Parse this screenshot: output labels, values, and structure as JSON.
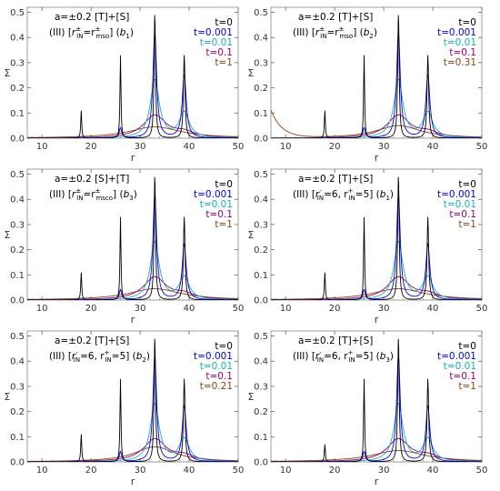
{
  "figure": {
    "axes": {
      "xlabel": "r",
      "ylabel": "Σ",
      "xlim": [
        7,
        50
      ],
      "ylim": [
        0,
        0.52
      ],
      "xticks": [
        "10",
        "20",
        "30",
        "40",
        "50"
      ],
      "yticks": [
        "0.0",
        "0.1",
        "0.2",
        "0.3",
        "0.4",
        "0.5"
      ],
      "grid": false
    },
    "colors": {
      "t=0": "#000000",
      "t=0.001": "#0000ee",
      "t=0.01": "#1ab0b0",
      "t=0.1": "#990077",
      "late": "#8b4513"
    }
  },
  "chart_data": [
    {
      "type": "line",
      "title_line1": "a=±0.2 [T]+[S]",
      "title_line2": "(III) [r⁺̲ₓ̲] (b1)",
      "title_parts": {
        "prefix": "(III) [",
        "main": "r",
        "sup": "±",
        "sub": "IN",
        "mid": "=r",
        "sup2": "±",
        "sub2": "mso",
        "suffix": "] (",
        "b": "b",
        "bsub": "1",
        "end": ")"
      },
      "legend": [
        "t=0",
        "t=0.001",
        "t=0.01",
        "t=0.1",
        "t=1"
      ],
      "legend_position": "top-right",
      "series": [
        {
          "name": "t=0",
          "peaks": [
            [
              18,
              0.11,
              0.12
            ],
            [
              26,
              0.33,
              0.12
            ],
            [
              33,
              0.5,
              0.18
            ],
            [
              39,
              0.33,
              0.2
            ]
          ]
        },
        {
          "name": "t=0.001",
          "peaks": [
            [
              26,
              0.04,
              0.3
            ],
            [
              33,
              0.42,
              0.45
            ],
            [
              39,
              0.25,
              0.5
            ]
          ]
        },
        {
          "name": "t=0.01",
          "peaks": [
            [
              33,
              0.23,
              1.1
            ],
            [
              39,
              0.1,
              1.2
            ]
          ]
        },
        {
          "name": "t=0.1",
          "peaks": [
            [
              33,
              0.09,
              2.8
            ],
            [
              39,
              0.02,
              2.5
            ]
          ]
        },
        {
          "name": "t=1",
          "peaks": [
            [
              33,
              0.045,
              6.5
            ]
          ]
        }
      ]
    },
    {
      "type": "line",
      "title_line1": "a=±0.2 [T]+[S]",
      "title_parts": {
        "prefix": "(III) [",
        "main": "r",
        "sup": "±",
        "sub": "IN",
        "mid": "=r",
        "sup2": "±",
        "sub2": "mso",
        "suffix": "] (",
        "b": "b",
        "bsub": "2",
        "end": ")"
      },
      "legend": [
        "t=0",
        "t=0.001",
        "t=0.01",
        "t=0.1",
        "t=0.31"
      ],
      "legend_position": "top-right",
      "series": [
        {
          "name": "t=0",
          "peaks": [
            [
              18,
              0.11,
              0.12
            ],
            [
              26,
              0.33,
              0.12
            ],
            [
              33,
              0.5,
              0.18
            ],
            [
              39,
              0.33,
              0.2
            ]
          ]
        },
        {
          "name": "t=0.001",
          "peaks": [
            [
              26,
              0.04,
              0.3
            ],
            [
              33,
              0.42,
              0.45
            ],
            [
              39,
              0.25,
              0.5
            ]
          ]
        },
        {
          "name": "t=0.01",
          "peaks": [
            [
              33,
              0.23,
              1.1
            ],
            [
              39,
              0.1,
              1.2
            ]
          ]
        },
        {
          "name": "t=0.1",
          "peaks": [
            [
              33,
              0.09,
              2.8
            ],
            [
              39,
              0.02,
              2.5
            ]
          ]
        },
        {
          "name": "t=0.31",
          "peaks": [
            [
              33,
              0.05,
              5.5
            ]
          ],
          "edge_rise": 0.11
        }
      ]
    },
    {
      "type": "line",
      "title_line1": "a=±0.2 [S]+[T]",
      "title_parts": {
        "prefix": "(III) [",
        "main": "r",
        "sup": "±",
        "sub": "IN",
        "mid": "=r",
        "sup2": "±",
        "sub2": "msco",
        "suffix": "] (",
        "b": "b",
        "bsub": "3",
        "end": ")"
      },
      "legend": [
        "t=0",
        "t=0.001",
        "t=0.01",
        "t=0.1",
        "t=1"
      ],
      "legend_position": "top-right",
      "series": [
        {
          "name": "t=0",
          "peaks": [
            [
              18,
              0.11,
              0.12
            ],
            [
              26,
              0.33,
              0.12
            ],
            [
              33,
              0.5,
              0.18
            ],
            [
              39,
              0.33,
              0.2
            ]
          ]
        },
        {
          "name": "t=0.001",
          "peaks": [
            [
              26,
              0.04,
              0.3
            ],
            [
              33,
              0.42,
              0.45
            ],
            [
              39,
              0.22,
              0.5
            ]
          ]
        },
        {
          "name": "t=0.01",
          "peaks": [
            [
              33,
              0.23,
              1.1
            ],
            [
              39,
              0.09,
              1.2
            ]
          ]
        },
        {
          "name": "t=0.1",
          "peaks": [
            [
              33,
              0.09,
              2.8
            ],
            [
              39,
              0.02,
              2.5
            ]
          ]
        },
        {
          "name": "t=1",
          "peaks": [
            [
              33,
              0.045,
              6.5
            ]
          ]
        }
      ]
    },
    {
      "type": "line",
      "title_line1": "a=±0.2 [T]+[S]",
      "title_parts": {
        "prefix": "(III) [",
        "main": "r",
        "sup": "-",
        "sub": "IN",
        "mid": "=6, r",
        "sup2": "+",
        "sub2": "IN",
        "suffix": "=5] (",
        "b": "b",
        "bsub": "1",
        "end": ")"
      },
      "legend": [
        "t=0",
        "t=0.001",
        "t=0.01",
        "t=0.1",
        "t=1"
      ],
      "legend_position": "top-right",
      "series": [
        {
          "name": "t=0",
          "peaks": [
            [
              18,
              0.11,
              0.12
            ],
            [
              26,
              0.33,
              0.12
            ],
            [
              33,
              0.5,
              0.18
            ],
            [
              39,
              0.33,
              0.2
            ]
          ]
        },
        {
          "name": "t=0.001",
          "peaks": [
            [
              26,
              0.04,
              0.3
            ],
            [
              33,
              0.42,
              0.45
            ],
            [
              39,
              0.22,
              0.5
            ]
          ]
        },
        {
          "name": "t=0.01",
          "peaks": [
            [
              33,
              0.23,
              1.1
            ],
            [
              39,
              0.09,
              1.2
            ]
          ]
        },
        {
          "name": "t=0.1",
          "peaks": [
            [
              33,
              0.09,
              2.8
            ],
            [
              39,
              0.02,
              2.5
            ]
          ]
        },
        {
          "name": "t=1",
          "peaks": [
            [
              33,
              0.045,
              6.5
            ]
          ]
        }
      ]
    },
    {
      "type": "line",
      "title_line1": "a=±0.2 [T]+[S]",
      "title_parts": {
        "prefix": "(III) [",
        "main": "r",
        "sup": "-",
        "sub": "IN",
        "mid": "=6, r",
        "sup2": "+",
        "sub2": "IN",
        "suffix": "=5] (",
        "b": "b",
        "bsub": "2",
        "end": ")"
      },
      "legend": [
        "t=0",
        "t=0.001",
        "t=0.01",
        "t=0.1",
        "t=0.21"
      ],
      "legend_position": "top-right",
      "series": [
        {
          "name": "t=0",
          "peaks": [
            [
              18,
              0.11,
              0.12
            ],
            [
              26,
              0.33,
              0.12
            ],
            [
              33,
              0.5,
              0.18
            ],
            [
              39,
              0.33,
              0.2
            ]
          ]
        },
        {
          "name": "t=0.001",
          "peaks": [
            [
              26,
              0.04,
              0.3
            ],
            [
              33,
              0.42,
              0.45
            ],
            [
              39,
              0.22,
              0.5
            ]
          ]
        },
        {
          "name": "t=0.01",
          "peaks": [
            [
              33,
              0.23,
              1.1
            ],
            [
              39,
              0.09,
              1.2
            ]
          ]
        },
        {
          "name": "t=0.1",
          "peaks": [
            [
              33,
              0.09,
              2.8
            ],
            [
              39,
              0.02,
              2.5
            ]
          ]
        },
        {
          "name": "t=0.21",
          "peaks": [
            [
              33,
              0.06,
              5
            ]
          ]
        }
      ]
    },
    {
      "type": "line",
      "title_line1": "a=±0.2 [T]+[S]",
      "title_parts": {
        "prefix": "(III) [",
        "main": "r",
        "sup": "-",
        "sub": "IN",
        "mid": "=6, r",
        "sup2": "+",
        "sub2": "IN",
        "suffix": "=5] (",
        "b": "b",
        "bsub": "3",
        "end": ")"
      },
      "legend": [
        "t=0",
        "t=0.001",
        "t=0.01",
        "t=0.1",
        "t=1"
      ],
      "legend_position": "top-right",
      "series": [
        {
          "name": "t=0",
          "peaks": [
            [
              18,
              0.07,
              0.12
            ],
            [
              26,
              0.33,
              0.12
            ],
            [
              33,
              0.5,
              0.18
            ],
            [
              39,
              0.33,
              0.2
            ]
          ]
        },
        {
          "name": "t=0.001",
          "peaks": [
            [
              26,
              0.04,
              0.3
            ],
            [
              33,
              0.42,
              0.45
            ],
            [
              39,
              0.22,
              0.5
            ]
          ]
        },
        {
          "name": "t=0.01",
          "peaks": [
            [
              33,
              0.23,
              1.1
            ],
            [
              39,
              0.09,
              1.2
            ]
          ]
        },
        {
          "name": "t=0.1",
          "peaks": [
            [
              33,
              0.09,
              2.8
            ],
            [
              39,
              0.02,
              2.5
            ]
          ]
        },
        {
          "name": "t=1",
          "peaks": [
            [
              33,
              0.045,
              6.5
            ]
          ]
        }
      ]
    }
  ]
}
